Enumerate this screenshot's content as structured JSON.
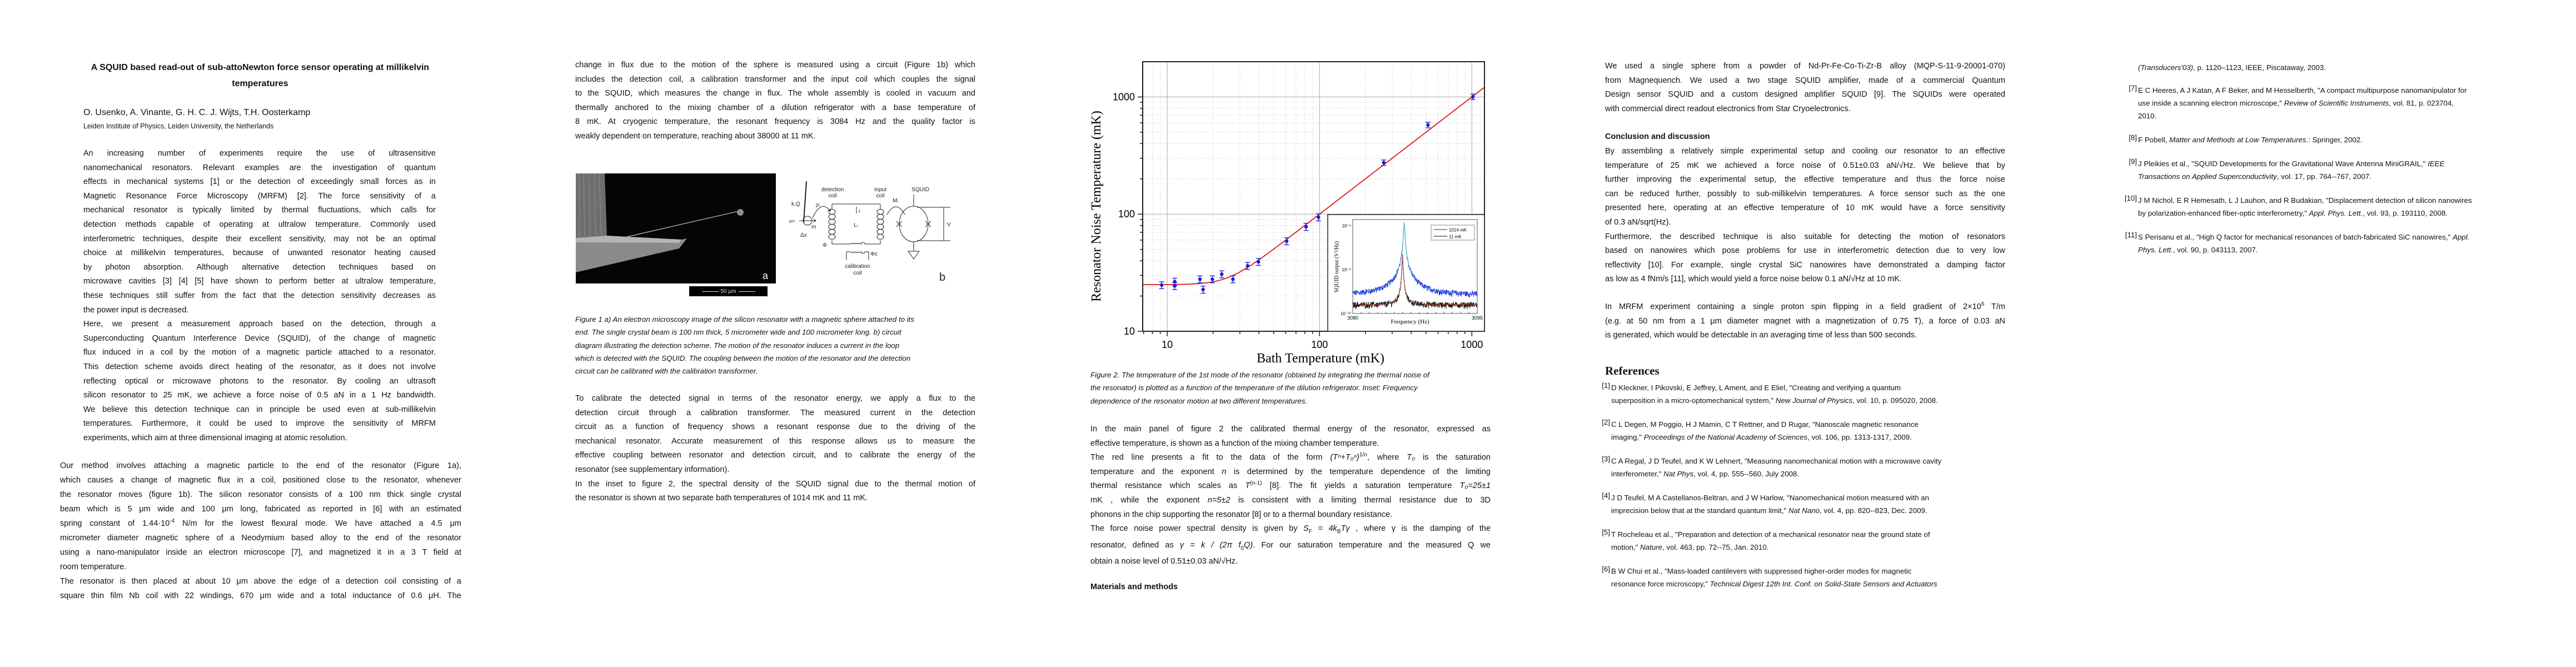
{
  "page1": {
    "title": [
      "A SQUID based read-out of sub-attoNewton force sensor operating at millikelvin",
      "temperatures"
    ],
    "authors": "O. Usenko, A. Vinante, G. H. C. J. Wijts, T.H. Oosterkamp",
    "affiliation": "Leiden Institute of Physics, Leiden University, the Netherlands",
    "intro": [
      [
        "An increasing number of experiments require the use of ultrasensitive",
        "nanomechanical resonators. Relevant examples are the investigation of quantum",
        "effects in mechanical systems [1] or the detection of exceedingly small forces as in",
        "Magnetic Resonance Force Microscopy (MRFM) [2]. The force sensitivity of a",
        "mechanical resonator is typically limited by thermal fluctuations, which calls for",
        "detection methods capable of operating at ultralow temperature. Commonly used",
        "interferometric techniques, despite their excellent sensitivity, may not be an optimal",
        "choice at millikelvin temperatures, because of unwanted resonator heating caused",
        "by photon absorption. Although alternative detection techniques based on",
        "microwave cavities [3] [4] [5] have shown to perform better at ultralow temperature,",
        "these techniques still suffer from the fact that the detection sensitivity decreases as",
        "the power input is decreased."
      ],
      [
        "Here, we present a measurement approach based on the detection, through a",
        "Superconducting Quantum Interference Device (SQUID), of the change of magnetic",
        "flux induced in a coil by the motion of a magnetic particle attached to a resonator.",
        "This detection scheme avoids direct heating of the resonator, as it does not involve",
        "reflecting optical or microwave photons to the resonator. By cooling an ultrasoft",
        "silicon resonator to 25 mK, we achieve a force noise of 0.5 aN in a 1 Hz bandwidth.",
        "We believe this detection technique can in principle be used even at sub-millikelvin",
        "temperatures. Furthermore, it could be used to improve the sensitivity of MRFM",
        "experiments, which aim at three dimensional imaging at atomic resolution."
      ]
    ],
    "method": [
      [
        "Our method involves attaching a magnetic particle to the end of the resonator (Figure 1a),",
        "which causes a change of magnetic flux in a coil, positioned close to the resonator, whenever",
        "the resonator moves (figure 1b). The silicon resonator consists of a 100 nm thick single crystal",
        "beam which is 5 μm wide and 100 μm long, fabricated as reported in [6] with an estimated",
        [
          "spring constant of 1.44·10",
          {
            "t": "-4",
            "s": "sup"
          },
          " N/m for the lowest flexural mode. We have attached a 4.5 μm"
        ],
        "micrometer diameter magnetic sphere of a Neodymium based alloy to the end of the resonator",
        "using a nano-manipulator inside an electron microscope [7], and magnetized it in a 3 T field at",
        "room temperature."
      ],
      [
        "The resonator is then placed at about 10 μm above the edge of a detection coil consisting of a",
        "square thin film Nb coil with 22 windings, 670 μm wide and a total inductance of 0.6 μH. The"
      ]
    ]
  },
  "page2": {
    "cont": [
      [
        "change in flux due to the motion of the sphere is measured using a circuit (Figure 1b) which",
        "includes the detection coil, a calibration transformer and the input coil which couples the signal",
        "to the SQUID, which measures the change in flux. The whole assembly is cooled in vacuum and",
        "thermally anchored to the mixing chamber of a dilution refrigerator with a base temperature of",
        "8 mK. At cryogenic temperature, the resonant frequency is 3084 Hz and the quality factor is",
        "weakly dependent on temperature, reaching about 38000 at 11 mK."
      ]
    ],
    "figure1": {
      "panel_a": "a",
      "panel_b": "b",
      "scale_bar": "50 μm",
      "circuit": {
        "kq": "k,Q",
        "beta": "β²",
        "moment": "μm",
        "m": "m",
        "dx": "Δx",
        "detection_coil": [
          "detection",
          "coil"
        ],
        "input_coil": [
          "input",
          "coil"
        ],
        "squid": "SQUID",
        "current": "i",
        "inductance": "Lᵢ",
        "mutual": "Mᵢ",
        "voltage": "V",
        "flux": "Φ",
        "flux_c": "Φc",
        "calibration_coil": [
          "calibration",
          "coil"
        ]
      }
    },
    "caption": [
      [
        "Figure 1 a) An electron microscopy image of the silicon resonator with a magnetic sphere attached to its",
        "end. The single crystal beam is 100 nm thick, 5 micrometer wide and 100 micrometer long. b) circuit",
        "diagram illustrating the detection scheme. The motion of the resonator induces a current in the loop",
        "which is detected with the SQUID. The coupling between the motion of the resonator and the detection",
        "circuit can be calibrated with the calibration transformer."
      ]
    ],
    "calib": [
      [
        "To calibrate the detected signal in terms of the resonator energy, we apply a flux to the",
        "detection circuit through a calibration transformer. The measured current in the detection",
        "circuit as a function of frequency shows a resonant response due to the driving of the",
        "mechanical resonator. Accurate measurement of this response allows us to measure the",
        "effective coupling between resonator and detection circuit, and to calibrate the energy of the",
        "resonator (see supplementary information)."
      ],
      [
        "In the inset to figure 2, the spectral density of the SQUID signal due to the thermal motion of",
        "the resonator is shown at two separate bath temperatures of 1014 mK and 11 mK."
      ]
    ]
  },
  "page3": {
    "caption": [
      [
        "Figure 2. The temperature of the 1st mode of the resonator (obtained by integrating the thermal noise of",
        "the resonator) is plotted as a function of the temperature of the dilution refrigerator. Inset: Frequency",
        "dependence of the resonator motion at two different temperatures."
      ]
    ],
    "body": [
      [
        "In the main panel of figure 2 the calibrated thermal energy of the resonator, expressed as",
        "effective temperature, is shown as a function of the mixing chamber temperature."
      ],
      [
        [
          "The red line presents a fit to the data of the form ",
          {
            "t": "(Tⁿ+T₀ⁿ)",
            "s": "i"
          },
          {
            "t": "1/n",
            "s": "sup"
          },
          ", where ",
          {
            "t": "T₀",
            "s": "i"
          },
          " is the saturation"
        ],
        [
          "temperature and the exponent ",
          {
            "t": "n",
            "s": "i"
          },
          " is determined by the temperature dependence of the limiting"
        ],
        [
          "thermal resistance which scales as ",
          {
            "t": "T",
            "s": "i"
          },
          {
            "t": "(n-1)",
            "s": "sup"
          },
          "  [8]. The fit yields a saturation temperature ",
          {
            "t": "T₀=25±1",
            "s": "i"
          }
        ],
        [
          "mK , while the exponent ",
          {
            "t": "n=5±2",
            "s": "i"
          },
          "  is consistent with a  limiting thermal resistance  due to 3D"
        ],
        "phonons in the chip supporting the resonator [8] or to a thermal boundary resistance."
      ]
    ],
    "force": [
      [
        [
          "The force noise power spectral density is given by ",
          {
            "t": "S",
            "s": "i"
          },
          {
            "t": "F",
            "s": "sub"
          },
          {
            "t": " = 4k",
            "s": "i"
          },
          {
            "t": "B",
            "s": "sub"
          },
          {
            "t": "Tγ",
            "s": "i"
          },
          " , where γ is the damping of the"
        ],
        [
          "resonator, defined as ",
          {
            "t": "γ = k / (2π f",
            "s": "i"
          },
          {
            "t": "0",
            "s": "sub"
          },
          {
            "t": "Q)",
            "s": "i"
          },
          ". For our saturation temperature and the measured Q we"
        ],
        "obtain a noise level of 0.51±0.03 aN/√Hz."
      ]
    ],
    "materials_heading": "Materials and methods"
  },
  "page4": {
    "materials": [
      [
        "We used a single sphere from a powder of Nd-Pr-Fe-Co-Ti-Zr-B alloy (MQP-S-11-9-20001-070)",
        "from Magnequench. We used a two stage SQUID amplifier, made of a commercial Quantum",
        "Design sensor SQUID and a custom designed amplifier SQUID [9]. The SQUIDs were operated",
        "with commercial direct readout electronics from Star Cryoelectronics."
      ]
    ],
    "conclusion_heading": "Conclusion and discussion",
    "conclusion": [
      [
        "By assembling a relatively simple experimental setup and cooling our resonator to an effective",
        "temperature of 25 mK we achieved a force noise of 0.51±0.03 aN/√Hz. We believe that by",
        "further improving the experimental setup, the effective temperature and thus the force noise",
        "can be reduced further, possibly to sub-millikelvin temperatures. A force sensor such as the one",
        "presented here, operating at an effective temperature of 10 mK would have a force sensitivity",
        "of 0.3 aN/sqrt(Hz)."
      ],
      [
        "Furthermore, the described technique is also suitable for detecting the motion of resonators",
        "based on nanowires which pose problems for use in interferometric detection  due to very low",
        "reflectivity [10]. For example, single crystal SiC nanowires have demonstrated a damping factor",
        "as low as 4 fNm/s [11], which would yield a force noise below 0.1 aN/√Hz at 10 mK."
      ]
    ],
    "mrfm": [
      [
        [
          "In MRFM experiment containing a single proton spin flipping in a field gradient of 2×10",
          {
            "t": "6",
            "s": "sup"
          },
          " T/m"
        ],
        "(e.g. at 50 nm from a 1 μm diameter magnet with a magnetization of 0.75 T), a force of 0.03 aN",
        "is generated, which would be detectable in an averaging time of less than 500 seconds."
      ]
    ],
    "references_heading": "References",
    "references": [
      {
        "num": "[1]",
        "lines": [
          [
            "D Kleckner, I Pikovski, E Jeffrey, L Ament, and E Eliel, \"Creating and verifying a quantum"
          ],
          [
            "superposition in a micro-optomechanical system,\" ",
            {
              "t": "New Journal of Physics",
              "s": "i"
            },
            ", vol. 10, p. 095020, 2008."
          ]
        ]
      },
      {
        "num": "[2]",
        "lines": [
          [
            "C L Degen, M Poggio, H J Mamin, C T Rettner, and D Rugar, \"Nanoscale magnetic resonance"
          ],
          [
            "imaging,\" ",
            {
              "t": "Proceedings of the National Academy of Sciences",
              "s": "i"
            },
            ", vol. 106, pp. 1313-1317, 2009."
          ]
        ]
      },
      {
        "num": "[3]",
        "lines": [
          [
            "C A Regal, J D Teufel, and K W Lehnert, \"Measuring nanomechanical motion with a microwave cavity"
          ],
          [
            "interferometer,\" ",
            {
              "t": "Nat Phys",
              "s": "i"
            },
            ", vol. 4, pp. 555--560, July 2008."
          ]
        ]
      },
      {
        "num": "[4]",
        "lines": [
          [
            "J D Teufel, M A Castellanos-Beltran, and J W Harlow, \"Nanomechanical motion measured with an"
          ],
          [
            "imprecision below that at the standard quantum limit,\" ",
            {
              "t": "Nat Nano",
              "s": "i"
            },
            ", vol. 4, pp. 820--823, Dec. 2009."
          ]
        ]
      },
      {
        "num": "[5]",
        "lines": [
          [
            "T Rocheleau et al., \"Preparation and detection of a mechanical resonator near the ground state of"
          ],
          [
            "motion,\" ",
            {
              "t": "Nature",
              "s": "i"
            },
            ", vol. 463, pp. 72--75, Jan. 2010."
          ]
        ]
      },
      {
        "num": "[6]",
        "lines": [
          [
            "B W Chui et al., \"Mass-loaded cantilevers with suppressed higher-order modes for magnetic"
          ],
          [
            "resonance force microscopy,\" ",
            {
              "t": "Technical Digest 12th Int. Conf. on Solid-State Sensors and Actuators",
              "s": "i"
            }
          ]
        ]
      }
    ]
  },
  "page5": {
    "references": [
      {
        "num": "",
        "lines": [
          [
            {
              "t": "(Transducers'03)",
              "s": "i"
            },
            ", p. 1120–1123, IEEE, Piscataway, 2003."
          ]
        ]
      },
      {
        "num": "[7]",
        "lines": [
          [
            "E C Heeres, A J Katan, A F Beker, and M Hesselberth, \"A compact multipurpose nanomanipulator for"
          ],
          [
            "use inside a scanning electron microscope,\" ",
            {
              "t": "Review of Scientific Instruments",
              "s": "i"
            },
            ", vol. 81, p. 023704,"
          ],
          [
            "2010."
          ]
        ]
      },
      {
        "num": "[8]",
        "lines": [
          [
            "F Pobell, ",
            {
              "t": "Matter and Methods at Low Temperatures",
              "s": "i"
            },
            ".: Springer, 2002."
          ]
        ]
      },
      {
        "num": "[9]",
        "lines": [
          [
            "J Pleikies et al., \"SQUID Developments for the Gravitational Wave Antenna MiniGRAIL,\" ",
            {
              "t": "IEEE",
              "s": "i"
            }
          ],
          [
            {
              "t": "Transactions on Applied Superconductivity",
              "s": "i"
            },
            ", vol. 17, pp. 764--767, 2007."
          ]
        ]
      },
      {
        "num": "[10]",
        "lines": [
          [
            "J M Nichol, E R Hemesath, L J Lauhon, and R Budakian, \"Displacement detection of silicon nanowires"
          ],
          [
            "by polarization-enhanced fiber-optic interferometry,\" ",
            {
              "t": "Appl. Phys. Lett.",
              "s": "i"
            },
            ", vol. 93, p. 193110, 2008."
          ]
        ]
      },
      {
        "num": "[11]",
        "lines": [
          [
            "S Perisanu et al., \"High Q factor for mechanical resonances of batch-fabricated SiC nanowires,\" ",
            {
              "t": "Appl.",
              "s": "i"
            }
          ],
          [
            {
              "t": "Phys. Lett.",
              "s": "i"
            },
            ", vol. 90, p. 043113, 2007."
          ]
        ]
      }
    ]
  },
  "chart_data": {
    "type": "scatter",
    "title": "",
    "xlabel": "Bath Temperature (mK)",
    "ylabel": "Resonator Noise Temperature (mK)",
    "xscale": "log",
    "yscale": "log",
    "xlim": [
      6.9,
      1210
    ],
    "ylim": [
      10,
      2000
    ],
    "xticks": [
      "10",
      "100",
      "1000"
    ],
    "yticks": [
      "10",
      "100",
      "1000"
    ],
    "grid": true,
    "series": [
      {
        "color": "#1a1adf",
        "x": [
          9.2,
          11.2,
          11.2,
          16.4,
          17.2,
          19.8,
          22.8,
          27,
          33.7,
          39.7,
          60.8,
          81.6,
          98.4,
          264,
          515,
          1016
        ],
        "y": [
          24.8,
          26.5,
          24.4,
          27.8,
          22.7,
          27.8,
          30.7,
          27.8,
          36.2,
          39.2,
          58.8,
          78,
          94.1,
          275,
          577,
          1004
        ],
        "yerr": [
          1.7,
          1.9,
          1.7,
          1.9,
          1.6,
          1.9,
          2.1,
          1.9,
          2.5,
          2.7,
          4.1,
          5.5,
          6.6,
          15,
          32,
          55
        ]
      }
    ],
    "fit": {
      "color": "#e0191b",
      "T0": 25,
      "n": 5
    },
    "inset": {
      "type": "line",
      "xlabel": "Frequency (Hz)",
      "ylabel": "SQUID output  (V²/Hz)",
      "yscale": "log",
      "xlim": [
        3080,
        3095
      ],
      "ylim": [
        1e-10,
        1.9e-06
      ],
      "xticks": [
        "3080",
        "3095"
      ],
      "yticks": [
        "10⁻⁶",
        "10⁻⁸",
        "10⁻¹⁰"
      ],
      "legend": "top-right",
      "series": [
        {
          "name": "1014 mK",
          "color": "#1f1fe0",
          "fit_color": "#3bbcc0",
          "peak_frequency": 3086.2,
          "peak": 1.3e-06,
          "baseline": 7e-10
        },
        {
          "name": "11 mK",
          "color": "#111111",
          "fit_color": "#a83a2a",
          "peak_frequency": 3086.0,
          "peak": 4e-08,
          "baseline": 2.5e-10
        }
      ]
    }
  }
}
